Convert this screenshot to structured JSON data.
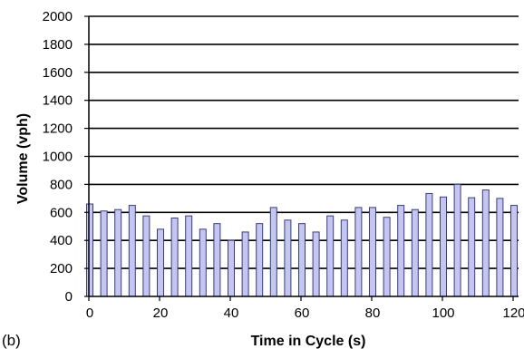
{
  "panel_label": "(b)",
  "colors": {
    "bar_fill": "#c4c6f0",
    "bar_stroke": "#3a3c82",
    "grid": "#000000"
  },
  "chart_data": {
    "type": "bar",
    "title": "",
    "xlabel": "Time in Cycle (s)",
    "ylabel": "Volume (vph)",
    "xlim": [
      0,
      120
    ],
    "ylim": [
      0,
      2000
    ],
    "x_ticks": [
      0,
      20,
      40,
      60,
      80,
      100,
      120
    ],
    "y_ticks": [
      0,
      200,
      400,
      600,
      800,
      1000,
      1200,
      1400,
      1600,
      1800,
      2000
    ],
    "grid": "horizontal",
    "x": [
      0,
      4,
      8,
      12,
      16,
      20,
      24,
      28,
      32,
      36,
      40,
      44,
      48,
      52,
      56,
      60,
      64,
      68,
      72,
      76,
      80,
      84,
      88,
      92,
      96,
      100,
      104,
      108,
      112,
      116,
      120
    ],
    "values": [
      660,
      610,
      620,
      650,
      575,
      480,
      560,
      575,
      480,
      520,
      400,
      460,
      520,
      635,
      545,
      520,
      460,
      575,
      545,
      635,
      635,
      565,
      650,
      620,
      735,
      710,
      800,
      705,
      760,
      700,
      650
    ]
  }
}
